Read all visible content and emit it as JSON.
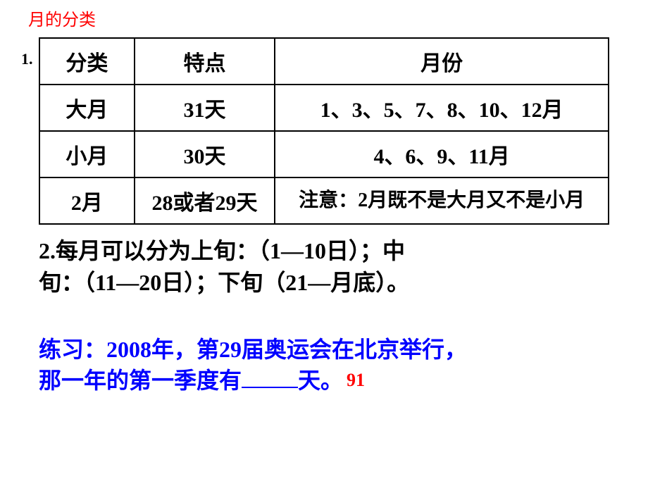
{
  "title": "月的分类",
  "list_num_1": "1.",
  "table": {
    "header": {
      "c1": "分类",
      "c2": "特点",
      "c3": "月份"
    },
    "row1": {
      "c1": "大月",
      "c2": "31天",
      "c3": "1、3、5、7、8、10、12月"
    },
    "row2": {
      "c1": "小月",
      "c2": "30天",
      "c3": "4、6、9、11月"
    },
    "row3": {
      "c1": "2月",
      "c2": "28或者29天",
      "c3": "注意：2月既不是大月又不是小月"
    }
  },
  "section2": {
    "prefix": "2.",
    "text_line1": "每月可以分为上旬：（1—10日）；中",
    "text_line2": "旬：（11—20日）；下旬（21—月底）。"
  },
  "exercise": {
    "line1": "练习：2008年，第29届奥运会在北京举行，",
    "line2_before": "那一年的第一季度有",
    "line2_after": "天。",
    "answer": "91"
  },
  "colors": {
    "title_color": "#ff0000",
    "text_color": "#000000",
    "exercise_color": "#0000ff",
    "answer_color": "#ff0000",
    "background": "#ffffff",
    "border_color": "#000000"
  },
  "font_sizes": {
    "title": 24,
    "table_cell": 30,
    "note_cell": 28,
    "section": 32,
    "exercise": 32,
    "answer": 26
  }
}
